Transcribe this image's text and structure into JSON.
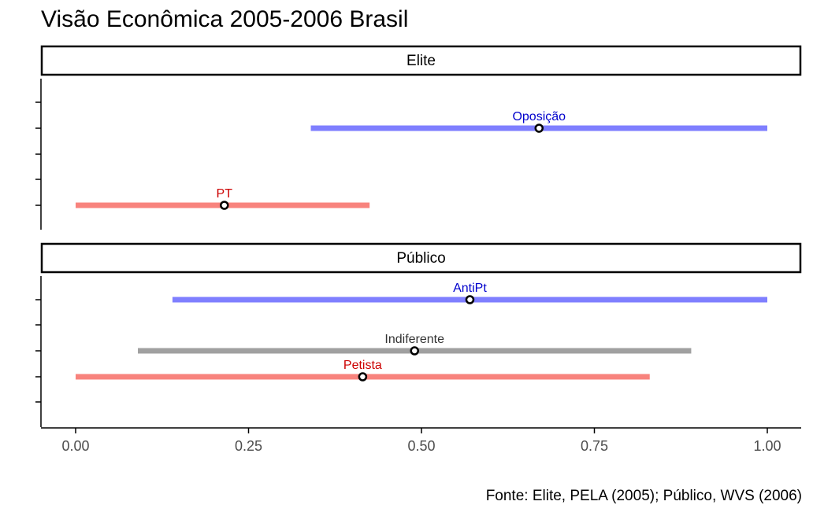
{
  "title": "Visão Econômica 2005-2006 Brasil",
  "caption": "Fonte: Elite, PELA (2005); Público, WVS (2006)",
  "colors": {
    "blue": "#7f7fff",
    "gray": "#a0a0a0",
    "red": "#f8837d",
    "label_blue": "#0000cc",
    "label_gray": "#333333",
    "label_red": "#cc0000"
  },
  "chart_data": {
    "type": "dotplot-with-ranges",
    "facets": [
      {
        "strip": "Elite",
        "rows": [
          {
            "label": "Oposição",
            "low": 0.34,
            "point": 0.67,
            "high": 1.0,
            "color": "blue"
          },
          {
            "label": "PT",
            "low": 0.0,
            "point": 0.215,
            "high": 0.425,
            "color": "red"
          }
        ]
      },
      {
        "strip": "Público",
        "rows": [
          {
            "label": "AntiPt",
            "low": 0.14,
            "point": 0.57,
            "high": 1.0,
            "color": "blue"
          },
          {
            "label": "Indiferente",
            "low": 0.09,
            "point": 0.49,
            "high": 0.89,
            "color": "gray"
          },
          {
            "label": "Petista",
            "low": 0.0,
            "point": 0.415,
            "high": 0.83,
            "color": "red"
          }
        ]
      }
    ],
    "x_ticks": [
      "0.00",
      "0.25",
      "0.50",
      "0.75",
      "1.00"
    ],
    "x_tick_values": [
      0,
      0.25,
      0.5,
      0.75,
      1.0
    ],
    "xlim": [
      0,
      1
    ]
  }
}
